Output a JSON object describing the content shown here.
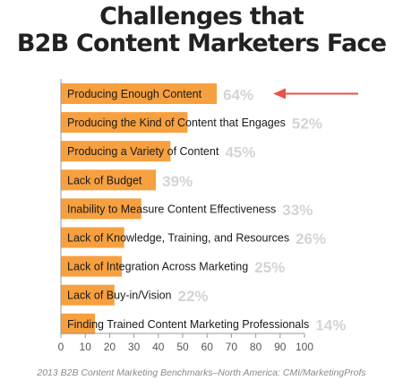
{
  "title_lines": [
    "Challenges that",
    "B2B Content Marketers Face"
  ],
  "source": "2013 B2B Content Marketing Benchmarks–North America: CMI/MarketingProfs",
  "colors": {
    "bar": "#f7a03f",
    "value_label": "#d4d4d4",
    "arrow": "#e8534a",
    "axis": "#999999",
    "label_text": "#1a1a1a",
    "tick_text": "#555555"
  },
  "chart_data": {
    "type": "bar",
    "orientation": "horizontal",
    "categories": [
      "Producing Enough Content",
      "Producing the Kind of Content that Engages",
      "Producing a Variety of Content",
      "Lack of Budget",
      "Inability to Measure Content Effectiveness",
      "Lack of Knowledge, Training, and Resources",
      "Lack of Integration Across Marketing",
      "Lack of Buy-in/Vision",
      "Finding Trained Content Marketing Professionals"
    ],
    "values": [
      64,
      52,
      45,
      39,
      33,
      26,
      25,
      22,
      14
    ],
    "value_labels": [
      "64%",
      "52%",
      "45%",
      "39%",
      "33%",
      "26%",
      "25%",
      "22%",
      "14%"
    ],
    "xlim": [
      0,
      100
    ],
    "xticks": [
      0,
      10,
      20,
      30,
      40,
      50,
      60,
      70,
      80,
      90,
      100
    ],
    "grid": false,
    "annotation": "arrow pointing to top bar"
  }
}
